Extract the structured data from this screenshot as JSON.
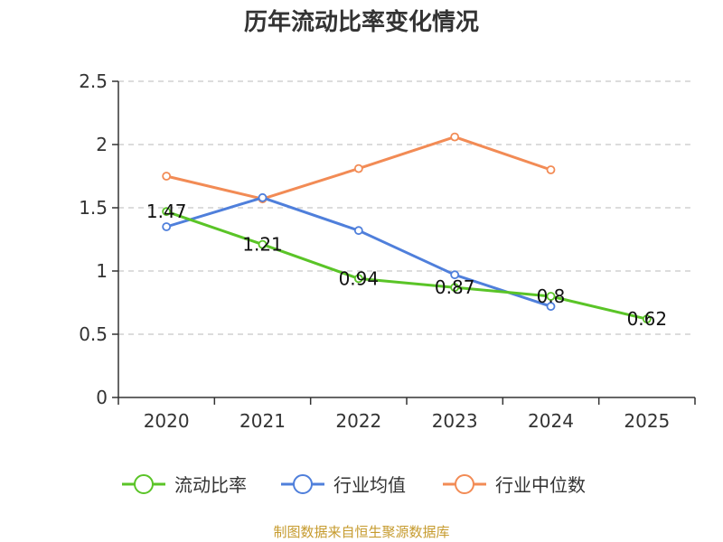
{
  "chart_data": {
    "type": "line",
    "title": "历年流动比率变化情况",
    "categories": [
      "2020",
      "2021",
      "2022",
      "2023",
      "2024",
      "2025"
    ],
    "ylim": [
      0,
      2.5
    ],
    "yticks": [
      "0",
      "0.5",
      "1",
      "1.5",
      "2",
      "2.5"
    ],
    "grid": true,
    "legend_position": "bottom",
    "series": [
      {
        "name": "流动比率",
        "color": "#5ac427",
        "values": [
          1.47,
          1.21,
          0.94,
          0.87,
          0.8,
          0.62
        ],
        "labels": [
          "1.47",
          "1.21",
          "0.94",
          "0.87",
          "0.8",
          "0.62"
        ]
      },
      {
        "name": "行业均值",
        "color": "#4f7fdb",
        "values": [
          1.35,
          1.58,
          1.32,
          0.97,
          0.72,
          null
        ]
      },
      {
        "name": "行业中位数",
        "color": "#f28b55",
        "values": [
          1.75,
          1.57,
          1.81,
          2.06,
          1.8,
          null
        ]
      }
    ]
  },
  "source": "制图数据来自恒生聚源数据库"
}
